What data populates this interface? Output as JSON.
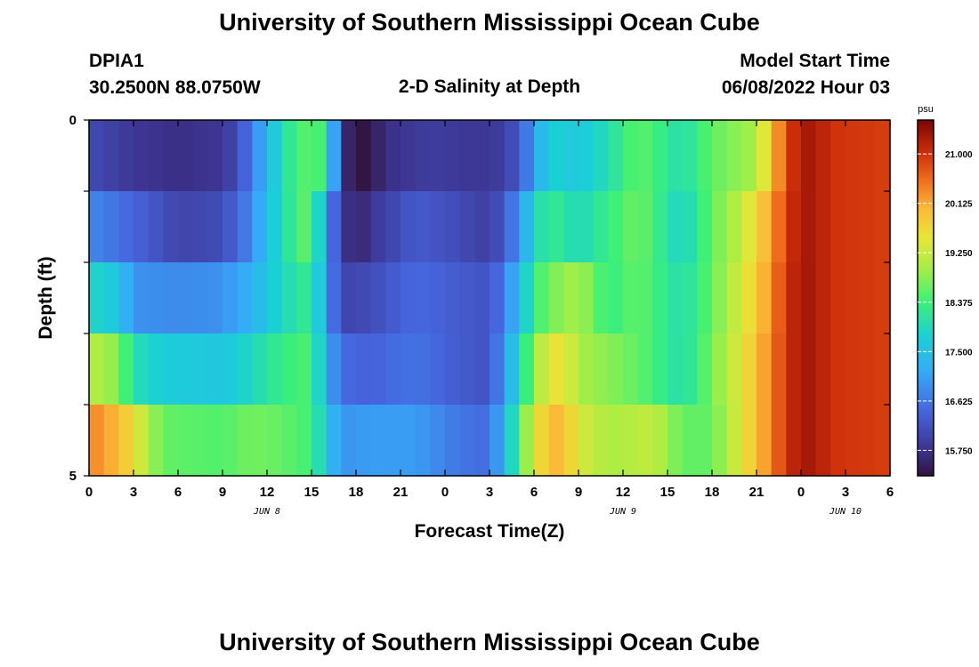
{
  "page": {
    "title": "University of Southern Mississippi Ocean Cube",
    "footer_title": "University of Southern Mississippi Ocean Cube"
  },
  "header": {
    "station": "DPIA1",
    "coords": "30.2500N  88.0750W",
    "subtitle": "2-D Salinity at Depth",
    "model_label": "Model Start Time",
    "model_time": "06/08/2022 Hour 03"
  },
  "chart_data": {
    "type": "heatmap",
    "title": "2-D Salinity at Depth",
    "xlabel": "Forecast Time(Z)",
    "ylabel": "Depth (ft)",
    "x_tick_labels": [
      "0",
      "3",
      "6",
      "9",
      "12",
      "15",
      "18",
      "21",
      "0",
      "3",
      "6",
      "9",
      "12",
      "15",
      "18",
      "21",
      "0",
      "3",
      "6"
    ],
    "x_range_hours": [
      0,
      54
    ],
    "x_date_labels": [
      {
        "label": "JUN 8",
        "hour": 12
      },
      {
        "label": "JUN 9",
        "hour": 36
      },
      {
        "label": "JUN 10",
        "hour": 51
      }
    ],
    "y_range": [
      0,
      5
    ],
    "y_tick_labels": [
      "0",
      "5"
    ],
    "depth_layers": [
      0,
      1,
      2,
      3,
      4,
      5
    ],
    "colorbar": {
      "unit": "psu",
      "min": 15.3,
      "max": 21.6,
      "tick_labels": [
        "21.000",
        "20.125",
        "19.250",
        "18.375",
        "17.500",
        "16.625",
        "15.750"
      ],
      "tick_values": [
        21.0,
        20.125,
        19.25,
        18.375,
        17.5,
        16.625,
        15.75
      ]
    },
    "layer_keypoints": [
      [
        [
          0,
          16.1
        ],
        [
          3,
          15.8
        ],
        [
          6,
          15.7
        ],
        [
          9,
          15.8
        ],
        [
          10,
          16.1
        ],
        [
          11,
          16.7
        ],
        [
          12,
          17.3
        ],
        [
          13,
          18.0
        ],
        [
          14,
          18.4
        ],
        [
          15,
          18.6
        ],
        [
          16,
          18.3
        ],
        [
          17,
          15.8
        ],
        [
          18,
          15.3
        ],
        [
          19,
          15.4
        ],
        [
          20,
          15.7
        ],
        [
          23,
          15.9
        ],
        [
          26,
          15.8
        ],
        [
          28,
          15.9
        ],
        [
          29,
          16.3
        ],
        [
          30,
          17.0
        ],
        [
          31,
          17.8
        ],
        [
          33,
          17.6
        ],
        [
          35,
          18.0
        ],
        [
          37,
          18.6
        ],
        [
          40,
          18.0
        ],
        [
          42,
          18.6
        ],
        [
          45,
          19.0
        ],
        [
          46,
          19.9
        ],
        [
          47,
          20.8
        ],
        [
          48,
          21.3
        ],
        [
          49,
          21.3
        ],
        [
          50,
          21.0
        ],
        [
          54,
          20.9
        ]
      ],
      [
        [
          0,
          16.8
        ],
        [
          4,
          16.3
        ],
        [
          6,
          16.0
        ],
        [
          9,
          16.1
        ],
        [
          11,
          16.8
        ],
        [
          12,
          17.5
        ],
        [
          14,
          18.4
        ],
        [
          15,
          18.7
        ],
        [
          16,
          17.0
        ],
        [
          17,
          15.9
        ],
        [
          18,
          15.5
        ],
        [
          19,
          15.8
        ],
        [
          22,
          16.3
        ],
        [
          25,
          16.1
        ],
        [
          27,
          15.9
        ],
        [
          28,
          16.3
        ],
        [
          29,
          16.9
        ],
        [
          30,
          17.8
        ],
        [
          31,
          18.3
        ],
        [
          33,
          17.9
        ],
        [
          35,
          18.3
        ],
        [
          37,
          18.7
        ],
        [
          40,
          17.8
        ],
        [
          42,
          18.6
        ],
        [
          44,
          19.2
        ],
        [
          46,
          20.2
        ],
        [
          47,
          20.9
        ],
        [
          48,
          21.3
        ],
        [
          49,
          21.3
        ],
        [
          50,
          21.0
        ],
        [
          54,
          20.9
        ]
      ],
      [
        [
          0,
          17.9
        ],
        [
          2,
          17.6
        ],
        [
          3,
          16.9
        ],
        [
          6,
          16.8
        ],
        [
          9,
          16.9
        ],
        [
          11,
          17.3
        ],
        [
          13,
          17.9
        ],
        [
          15,
          18.3
        ],
        [
          16,
          17.0
        ],
        [
          17,
          16.0
        ],
        [
          19,
          16.1
        ],
        [
          22,
          16.5
        ],
        [
          25,
          16.3
        ],
        [
          27,
          16.2
        ],
        [
          28,
          16.7
        ],
        [
          29,
          17.4
        ],
        [
          30,
          18.3
        ],
        [
          31,
          18.7
        ],
        [
          33,
          19.0
        ],
        [
          35,
          18.3
        ],
        [
          37,
          18.6
        ],
        [
          40,
          18.0
        ],
        [
          42,
          18.6
        ],
        [
          44,
          19.4
        ],
        [
          46,
          20.3
        ],
        [
          47,
          21.0
        ],
        [
          48,
          21.3
        ],
        [
          49,
          21.3
        ],
        [
          50,
          21.0
        ],
        [
          54,
          20.9
        ]
      ],
      [
        [
          0,
          19.1
        ],
        [
          2,
          18.8
        ],
        [
          3,
          18.0
        ],
        [
          5,
          17.7
        ],
        [
          9,
          17.6
        ],
        [
          11,
          17.9
        ],
        [
          13,
          18.3
        ],
        [
          15,
          18.5
        ],
        [
          16,
          17.2
        ],
        [
          17,
          16.5
        ],
        [
          19,
          16.4
        ],
        [
          22,
          16.6
        ],
        [
          25,
          16.3
        ],
        [
          27,
          16.2
        ],
        [
          28,
          17.0
        ],
        [
          29,
          17.9
        ],
        [
          30,
          18.8
        ],
        [
          31,
          19.5
        ],
        [
          32,
          19.6
        ],
        [
          33,
          19.0
        ],
        [
          35,
          18.8
        ],
        [
          37,
          18.6
        ],
        [
          40,
          18.0
        ],
        [
          42,
          18.7
        ],
        [
          44,
          19.5
        ],
        [
          46,
          20.4
        ],
        [
          47,
          21.0
        ],
        [
          48,
          21.3
        ],
        [
          49,
          21.3
        ],
        [
          50,
          21.0
        ],
        [
          54,
          20.9
        ]
      ],
      [
        [
          0,
          20.4
        ],
        [
          2,
          20.0
        ],
        [
          3,
          19.6
        ],
        [
          4,
          19.0
        ],
        [
          5,
          18.6
        ],
        [
          9,
          18.5
        ],
        [
          11,
          18.7
        ],
        [
          13,
          18.6
        ],
        [
          15,
          18.4
        ],
        [
          16,
          17.6
        ],
        [
          17,
          16.9
        ],
        [
          19,
          17.0
        ],
        [
          22,
          17.0
        ],
        [
          25,
          16.6
        ],
        [
          27,
          16.5
        ],
        [
          28,
          17.4
        ],
        [
          29,
          18.4
        ],
        [
          30,
          19.4
        ],
        [
          31,
          20.0
        ],
        [
          32,
          20.0
        ],
        [
          33,
          19.4
        ],
        [
          35,
          19.0
        ],
        [
          38,
          19.2
        ],
        [
          40,
          18.6
        ],
        [
          42,
          18.6
        ],
        [
          44,
          19.5
        ],
        [
          46,
          20.4
        ],
        [
          47,
          21.0
        ],
        [
          48,
          21.3
        ],
        [
          49,
          21.3
        ],
        [
          50,
          21.0
        ],
        [
          54,
          20.9
        ]
      ],
      [
        [
          0,
          20.9
        ],
        [
          2,
          20.8
        ],
        [
          3,
          20.4
        ],
        [
          4,
          19.8
        ],
        [
          5,
          19.2
        ],
        [
          7,
          18.9
        ],
        [
          9,
          18.7
        ],
        [
          11,
          18.4
        ],
        [
          13,
          18.2
        ],
        [
          15,
          18.0
        ],
        [
          17,
          17.9
        ],
        [
          19,
          18.0
        ],
        [
          21,
          17.7
        ],
        [
          23,
          17.2
        ],
        [
          25,
          16.9
        ],
        [
          27,
          17.2
        ],
        [
          28,
          17.8
        ],
        [
          29,
          18.6
        ],
        [
          30,
          19.7
        ],
        [
          31,
          20.5
        ],
        [
          33,
          20.4
        ],
        [
          35,
          19.8
        ],
        [
          37,
          19.3
        ],
        [
          40,
          19.2
        ],
        [
          42,
          19.0
        ],
        [
          44,
          19.3
        ],
        [
          46,
          20.3
        ],
        [
          47,
          21.0
        ],
        [
          48,
          21.3
        ],
        [
          49,
          21.3
        ],
        [
          50,
          21.0
        ],
        [
          54,
          20.9
        ]
      ]
    ]
  },
  "colors": {
    "frame": "#000000",
    "gridline": "#ffffff"
  }
}
